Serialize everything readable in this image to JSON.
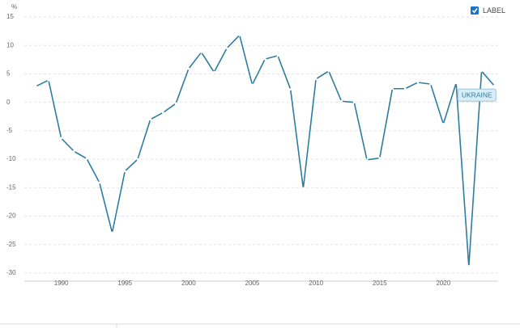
{
  "chart_data": {
    "type": "line",
    "y_unit": "%",
    "legend": {
      "label": "LABEL",
      "checked": true
    },
    "x": [
      1988,
      1989,
      1990,
      1991,
      1992,
      1993,
      1994,
      1995,
      1996,
      1997,
      1998,
      1999,
      2000,
      2001,
      2002,
      2003,
      2004,
      2005,
      2006,
      2007,
      2008,
      2009,
      2010,
      2011,
      2012,
      2013,
      2014,
      2015,
      2016,
      2017,
      2018,
      2019,
      2020,
      2021,
      2022,
      2023,
      2024
    ],
    "series": [
      {
        "name": "UKRAINE",
        "color": "#2e7d9f",
        "values": [
          2.8,
          3.9,
          -6.3,
          -8.6,
          -9.9,
          -14.1,
          -22.9,
          -12.1,
          -10.0,
          -3.0,
          -1.8,
          -0.2,
          5.9,
          8.8,
          5.3,
          9.5,
          11.8,
          3.1,
          7.6,
          8.2,
          2.3,
          -15.1,
          4.1,
          5.5,
          0.2,
          0.0,
          -10.1,
          -9.8,
          2.4,
          2.4,
          3.5,
          3.2,
          -3.8,
          3.4,
          -28.8,
          5.5,
          2.9
        ]
      }
    ],
    "xlim": [
      1987.1,
      2024.3
    ],
    "xticks": [
      1990,
      1995,
      2000,
      2005,
      2010,
      2015,
      2020
    ],
    "ylim": [
      -30,
      15
    ],
    "yticks": [
      -30,
      -25,
      -20,
      -15,
      -10,
      -5,
      0,
      5,
      10,
      15
    ],
    "grid": true
  }
}
